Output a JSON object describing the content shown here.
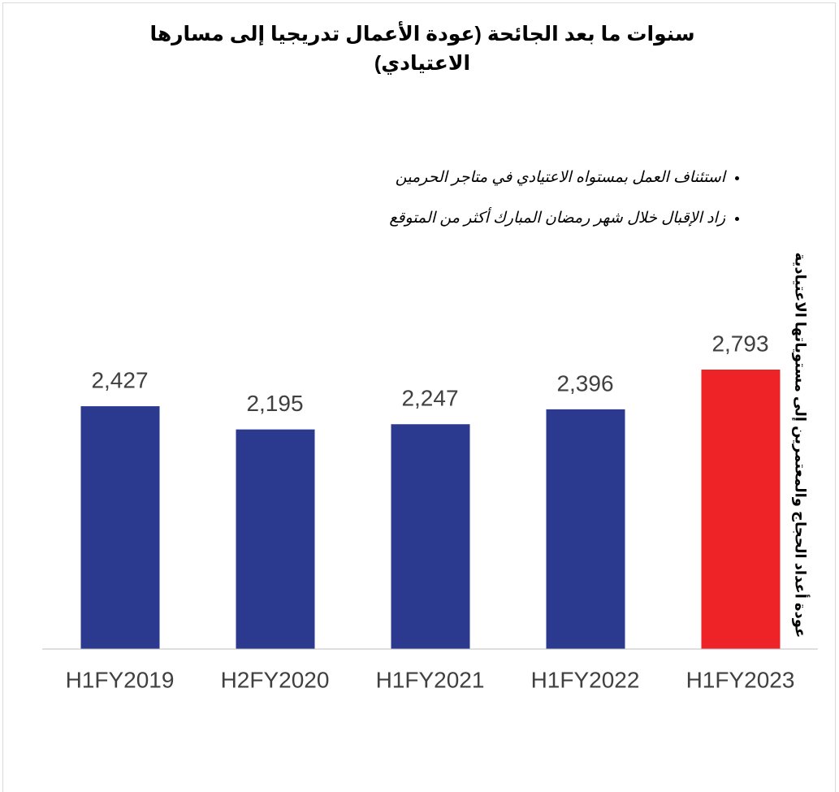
{
  "chart_data": {
    "type": "bar",
    "title": "سنوات ما بعد الجائحة (عودة الأعمال تدريجيا إلى مسارها الاعتيادي)",
    "annotations": [
      "استئناف العمل بمستواه الاعتيادي في متاجر الحرمين",
      "زاد الإقبال خلال شهر رمضان المبارك أكثر من المتوقع"
    ],
    "side_note": "عودة أعداد الحجاج والمعتمرين إلى مستوياتها الاعتيادية",
    "categories": [
      "H1FY2019",
      "H2FY2020",
      "H1FY2021",
      "H1FY2022",
      "H1FY2023"
    ],
    "values": [
      2427,
      2195,
      2247,
      2396,
      2793
    ],
    "value_labels": [
      "2,427",
      "2,195",
      "2,247",
      "2,396",
      "2,793"
    ],
    "colors": [
      "#2b3a8f",
      "#2b3a8f",
      "#2b3a8f",
      "#2b3a8f",
      "#ed2327"
    ]
  }
}
